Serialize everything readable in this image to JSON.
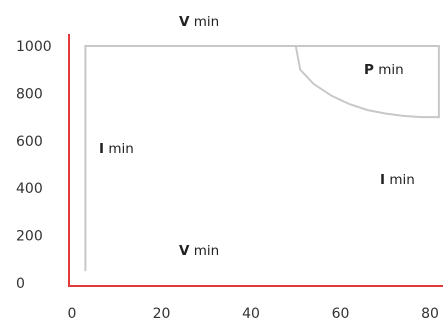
{
  "chart_data": {
    "type": "line",
    "title": "",
    "xlabel": "",
    "ylabel": "",
    "xlim": [
      0,
      80
    ],
    "ylim": [
      0,
      1000
    ],
    "x_ticks": [
      0,
      20,
      40,
      60,
      80
    ],
    "y_ticks": [
      0,
      200,
      400,
      600,
      800,
      1000
    ],
    "grid": false,
    "axis_color": "#e03a3a",
    "envelope_color": "#c8c8c8",
    "series": [
      {
        "x": [
          3,
          3,
          82,
          82,
          78,
          74,
          70,
          66,
          62,
          58,
          54,
          51,
          50,
          3
        ],
        "y": [
          50,
          1000,
          1000,
          700,
          700,
          705,
          715,
          730,
          755,
          790,
          840,
          900,
          1000,
          1000
        ]
      }
    ],
    "annotations": [
      {
        "bold": "V",
        "text": " min"
      },
      {
        "bold": "P",
        "text": " min"
      },
      {
        "bold": "I",
        "text": " min"
      },
      {
        "bold": "I",
        "text": " min"
      },
      {
        "bold": "V",
        "text": " min"
      }
    ]
  }
}
